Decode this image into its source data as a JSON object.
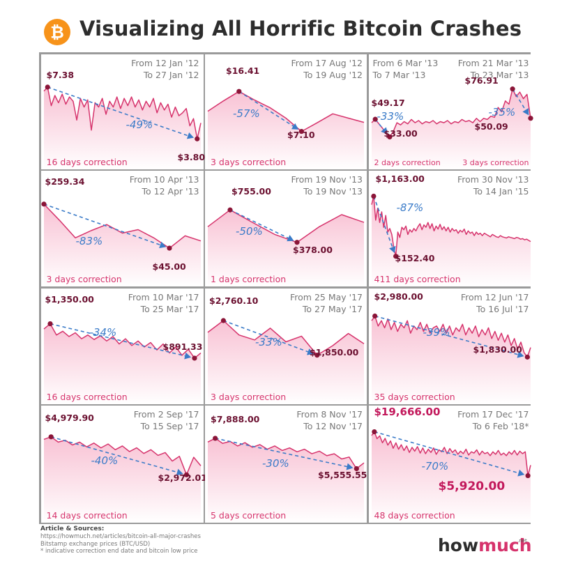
{
  "header": {
    "title": "Visualizing All Horrific Bitcoin Crashes",
    "logo_icon": "bitcoin-logo-icon",
    "logo_symbol": "₿",
    "logo_color": "#f7931a"
  },
  "colors": {
    "line": "#d6336c",
    "fill_top": "#f8bfd2",
    "fill_bottom": "#ffffff",
    "marker": "#8b1538",
    "arrow": "#3a7bc8",
    "grid_border": "#9a9a9a"
  },
  "chart_data": [
    {
      "type": "area",
      "from": "From 12 Jan '12",
      "to": "To 27 Jan '12",
      "high_label": "$7.38",
      "low_label": "$3.80",
      "change_label": "-49%",
      "duration": "16 days correction",
      "x": [
        0,
        1,
        2,
        3,
        4,
        5,
        6,
        7,
        8,
        9,
        10,
        11,
        12,
        13,
        14,
        15,
        16,
        17,
        18,
        19,
        20,
        21,
        22,
        23,
        24,
        25,
        26,
        27,
        28,
        29,
        30,
        31,
        32,
        33,
        34,
        35,
        36,
        37,
        38,
        39,
        40,
        41,
        42,
        43
      ],
      "y": [
        7.1,
        7.38,
        6.1,
        6.8,
        6.3,
        6.9,
        6.2,
        6.7,
        6.4,
        5.1,
        6.6,
        6.0,
        6.5,
        4.4,
        6.3,
        6.0,
        6.6,
        5.5,
        6.4,
        6.0,
        6.7,
        5.9,
        6.6,
        6.1,
        6.7,
        6.0,
        6.5,
        5.8,
        6.4,
        6.0,
        6.6,
        5.6,
        6.3,
        5.8,
        6.2,
        5.3,
        6.0,
        5.4,
        5.6,
        5.9,
        4.7,
        5.2,
        3.8,
        4.9
      ],
      "high_index": 1,
      "low_index": 42,
      "ylim": [
        2.8,
        8.2
      ]
    },
    {
      "type": "area",
      "from": "From 17 Aug '12",
      "to": "To 19 Aug '12",
      "high_label": "$16.41",
      "low_label": "$7.10",
      "change_label": "-57%",
      "duration": "3 days correction",
      "x": [
        0,
        1,
        2,
        3,
        4,
        5,
        6,
        7,
        8,
        9,
        10
      ],
      "y": [
        11.8,
        14.2,
        16.41,
        14.4,
        12.6,
        10.2,
        7.1,
        9.1,
        11.2,
        10.2,
        9.2
      ],
      "high_index": 2,
      "low_index": 6,
      "ylim": [
        2.0,
        20.5
      ]
    },
    {
      "type": "area",
      "from": "From 6 Mar '13",
      "to": "To 7 Mar '13",
      "from_2": "From 21 Mar '13",
      "to_2": "To 23 Mar '13",
      "high_label": "$49.17",
      "low_label": "$33.00",
      "high_label_2": "$76.91",
      "low_label_2": "$50.09",
      "change_label": "-33%",
      "change_label_2": "-35%",
      "duration": "2 days correction",
      "duration_2": "3 days correction",
      "x": [
        0,
        1,
        2,
        3,
        4,
        5,
        6,
        7,
        8,
        9,
        10,
        11,
        12,
        13,
        14,
        15,
        16,
        17,
        18,
        19,
        20,
        21,
        22,
        23,
        24,
        25,
        26,
        27,
        28,
        29,
        30,
        31,
        32,
        33,
        34,
        35,
        36,
        37,
        38,
        39,
        40,
        41,
        42,
        43,
        44
      ],
      "y": [
        46,
        49.17,
        45,
        41,
        36,
        33,
        38,
        46,
        44,
        47,
        45,
        49,
        46,
        48,
        45,
        47,
        46,
        48,
        45,
        47,
        46,
        48,
        45,
        47,
        46,
        49,
        47,
        48,
        46,
        50,
        47,
        50,
        49,
        52,
        51,
        60,
        56,
        66,
        63,
        76.91,
        70,
        74,
        68,
        72,
        50.09
      ],
      "high_index": 1,
      "low_index": 5,
      "high_index_2": 39,
      "low_index_2": 44,
      "ylim": [
        18,
        92
      ]
    },
    {
      "type": "area",
      "from": "From 10 Apr '13",
      "to": "To 12 Apr '13",
      "high_label": "$259.34",
      "low_label": "$45.00",
      "change_label": "-83%",
      "duration": "3 days correction",
      "x": [
        0,
        1,
        2,
        3,
        4,
        5,
        6,
        7,
        8,
        9,
        10
      ],
      "y": [
        259.34,
        180,
        95,
        130,
        160,
        118,
        135,
        95,
        45,
        105,
        80
      ],
      "high_index": 0,
      "low_index": 8,
      "ylim": [
        -60,
        320
      ]
    },
    {
      "type": "area",
      "from": "From 19 Nov '13",
      "to": "To 19 Nov '13",
      "high_label": "$755.00",
      "low_label": "$378.00",
      "change_label": "-50%",
      "duration": "1 days correction",
      "x": [
        0,
        1,
        2,
        3,
        4,
        5,
        6,
        7
      ],
      "y": [
        560,
        755,
        610,
        470,
        378,
        560,
        700,
        610
      ],
      "high_index": 1,
      "low_index": 4,
      "ylim": [
        60,
        1000
      ]
    },
    {
      "type": "area",
      "from": "From 30 Nov '13",
      "to": "To 14 Jan '15",
      "high_label": "$1,163.00",
      "low_label": "$152.40",
      "change_label": "-87%",
      "duration": "411 days correction",
      "x": [
        0,
        1,
        2,
        3,
        4,
        5,
        6,
        7,
        8,
        9,
        10,
        11,
        12,
        13,
        14,
        15,
        16,
        17,
        18,
        19,
        20,
        21,
        22,
        23,
        24,
        25,
        26,
        27,
        28,
        29,
        30,
        31,
        32,
        33,
        34,
        35,
        36,
        37,
        38,
        39,
        40,
        41,
        42,
        43,
        44,
        45,
        46,
        47,
        48,
        49,
        50,
        51,
        52,
        53,
        54,
        55,
        56,
        57,
        58,
        59,
        60,
        61,
        62,
        63,
        64,
        65,
        66,
        67,
        68,
        69,
        70,
        71,
        72,
        73,
        74,
        75,
        76,
        77,
        78,
        79
      ],
      "y": [
        1020,
        1163,
        760,
        960,
        720,
        900,
        640,
        840,
        560,
        620,
        520,
        300,
        152.4,
        560,
        470,
        640,
        600,
        660,
        520,
        600,
        560,
        620,
        580,
        650,
        700,
        600,
        680,
        640,
        720,
        620,
        700,
        580,
        660,
        610,
        690,
        600,
        650,
        580,
        640,
        560,
        620,
        580,
        600,
        540,
        590,
        560,
        610,
        520,
        580,
        540,
        560,
        500,
        560,
        520,
        540,
        500,
        540,
        520,
        500,
        480,
        520,
        500,
        480,
        470,
        500,
        480,
        470,
        460,
        480,
        470,
        460,
        450,
        470,
        460,
        440,
        450,
        430,
        440,
        420,
        400
      ],
      "high_index": 1,
      "low_index": 12,
      "ylim": [
        -120,
        1380
      ]
    },
    {
      "type": "area",
      "from": "From 10 Mar '17",
      "to": "To 25 Mar '17",
      "high_label": "$1,350.00",
      "low_label": "$891.33",
      "change_label": "-34%",
      "duration": "16 days correction",
      "x": [
        0,
        1,
        2,
        3,
        4,
        5,
        6,
        7,
        8,
        9,
        10,
        11,
        12,
        13,
        14,
        15,
        16,
        17,
        18,
        19,
        20,
        21,
        22,
        23,
        24,
        25
      ],
      "y": [
        1280,
        1350,
        1200,
        1250,
        1180,
        1230,
        1150,
        1200,
        1140,
        1190,
        1120,
        1180,
        1080,
        1150,
        1060,
        1120,
        1040,
        1100,
        1000,
        1080,
        960,
        1040,
        930,
        1010,
        891.33,
        960
      ],
      "high_index": 1,
      "low_index": 24,
      "ylim": [
        500,
        1560
      ]
    },
    {
      "type": "area",
      "from": "From 25 May '17",
      "to": "To 27 May '17",
      "high_label": "$2,760.10",
      "low_label": "$1,850.00",
      "change_label": "-33%",
      "duration": "3 days correction",
      "x": [
        0,
        1,
        2,
        3,
        4,
        5,
        6,
        7,
        8,
        9,
        10
      ],
      "y": [
        2450,
        2760.1,
        2380,
        2250,
        2560,
        2200,
        2350,
        1850,
        2100,
        2420,
        2150
      ],
      "high_index": 1,
      "low_index": 7,
      "ylim": [
        1000,
        3200
      ]
    },
    {
      "type": "area",
      "from": "From 12 Jun '17",
      "to": "To 16 Jul '17",
      "high_label": "$2,980.00",
      "low_label": "$1,830.00",
      "change_label": "-39%",
      "duration": "35 days correction",
      "x": [
        0,
        1,
        2,
        3,
        4,
        5,
        6,
        7,
        8,
        9,
        10,
        11,
        12,
        13,
        14,
        15,
        16,
        17,
        18,
        19,
        20,
        21,
        22,
        23,
        24,
        25,
        26,
        27,
        28,
        29,
        30,
        31,
        32,
        33,
        34,
        35,
        36,
        37,
        38,
        39,
        40,
        41,
        42,
        43,
        44,
        45,
        46,
        47,
        48,
        49
      ],
      "y": [
        2850,
        2980,
        2700,
        2850,
        2650,
        2900,
        2600,
        2800,
        2550,
        2750,
        2650,
        2850,
        2500,
        2700,
        2600,
        2800,
        2550,
        2750,
        2500,
        2650,
        2700,
        2550,
        2750,
        2500,
        2700,
        2450,
        2650,
        2550,
        2750,
        2450,
        2650,
        2500,
        2700,
        2400,
        2600,
        2450,
        2650,
        2350,
        2550,
        2300,
        2500,
        2250,
        2450,
        2150,
        2350,
        2050,
        2250,
        1950,
        1830,
        2100
      ],
      "high_index": 1,
      "low_index": 48,
      "ylim": [
        900,
        3400
      ]
    },
    {
      "type": "area",
      "from": "From 2 Sep '17",
      "to": "To 15 Sep '17",
      "high_label": "$4,979.90",
      "low_label": "$2,972.01",
      "change_label": "-40%",
      "duration": "14 days correction",
      "x": [
        0,
        1,
        2,
        3,
        4,
        5,
        6,
        7,
        8,
        9,
        10,
        11,
        12,
        13,
        14,
        15,
        16,
        17,
        18,
        19,
        20,
        21,
        22
      ],
      "y": [
        4850,
        4979.9,
        4700,
        4800,
        4550,
        4700,
        4450,
        4650,
        4400,
        4600,
        4300,
        4500,
        4200,
        4400,
        4100,
        4300,
        4000,
        4150,
        3700,
        3950,
        2972.01,
        3900,
        3450
      ],
      "high_index": 1,
      "low_index": 20,
      "ylim": [
        1400,
        5600
      ]
    },
    {
      "type": "area",
      "from": "From 8 Nov '17",
      "to": "To 12 Nov '17",
      "high_label": "$7,888.00",
      "low_label": "$5,555.55",
      "change_label": "-30%",
      "duration": "5 days correction",
      "x": [
        0,
        1,
        2,
        3,
        4,
        5,
        6,
        7,
        8,
        9,
        10,
        11,
        12,
        13,
        14,
        15,
        16,
        17,
        18,
        19,
        20,
        21
      ],
      "y": [
        7600,
        7888,
        7500,
        7650,
        7300,
        7550,
        7200,
        7400,
        7050,
        7300,
        6950,
        7150,
        6850,
        7050,
        6700,
        6900,
        6550,
        6700,
        6300,
        6450,
        5555.55,
        6000
      ],
      "high_index": 1,
      "low_index": 20,
      "ylim": [
        2800,
        8900
      ]
    },
    {
      "type": "area",
      "from": "From 17 Dec '17",
      "to": "To 6 Feb '18*",
      "high_label": "$19,666.00",
      "low_label": "$5,920.00",
      "change_label": "-70%",
      "duration": "48 days correction",
      "x": [
        0,
        1,
        2,
        3,
        4,
        5,
        6,
        7,
        8,
        9,
        10,
        11,
        12,
        13,
        14,
        15,
        16,
        17,
        18,
        19,
        20,
        21,
        22,
        23,
        24,
        25,
        26,
        27,
        28,
        29,
        30,
        31,
        32,
        33,
        34,
        35,
        36,
        37,
        38,
        39,
        40,
        41,
        42,
        43,
        44,
        45,
        46,
        47,
        48,
        49,
        50,
        51,
        52,
        53,
        54,
        55,
        56,
        57,
        58,
        59
      ],
      "y": [
        18500,
        19666,
        17500,
        18400,
        16200,
        17600,
        15500,
        16800,
        14500,
        16200,
        14200,
        15600,
        13800,
        15200,
        13200,
        14800,
        13600,
        15000,
        13000,
        14600,
        12800,
        14200,
        13200,
        14600,
        12600,
        14000,
        13400,
        14800,
        12800,
        14400,
        13200,
        14000,
        12600,
        13600,
        12800,
        14200,
        12400,
        13400,
        13000,
        14000,
        12400,
        13600,
        12800,
        13200,
        12200,
        13400,
        12600,
        13800,
        12400,
        13000,
        12200,
        13400,
        12600,
        13800,
        12400,
        13600,
        12800,
        13400,
        5920,
        9200
      ],
      "high_index": 1,
      "low_index": 58,
      "ylim": [
        -4000,
        23500
      ]
    }
  ],
  "footer": {
    "heading": "Article & Sources:",
    "lines": [
      "https://howmuch.net/articles/bitcoin-all-major-crashes",
      "Bitstamp exchange prices (BTC/USD)",
      "* indicative correction end date and bitcoin low price"
    ],
    "brand_how": "how",
    "brand_much": "much",
    "brand_tld": ".net"
  }
}
